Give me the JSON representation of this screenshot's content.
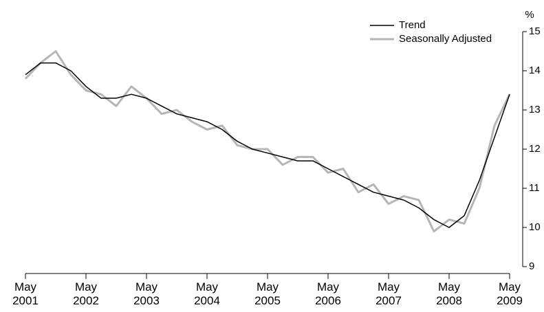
{
  "chart_data": {
    "type": "line",
    "y_unit": "%",
    "categories": [
      "May 2001",
      null,
      null,
      null,
      "May 2002",
      null,
      null,
      null,
      "May 2003",
      null,
      null,
      null,
      "May 2004",
      null,
      null,
      null,
      "May 2005",
      null,
      null,
      null,
      "May 2006",
      null,
      null,
      null,
      "May 2007",
      null,
      null,
      null,
      "May 2008",
      null,
      null,
      null,
      "May 2009"
    ],
    "series": [
      {
        "name": "Trend",
        "color": "#000000",
        "values": [
          13.9,
          14.2,
          14.2,
          14.0,
          13.6,
          13.3,
          13.3,
          13.4,
          13.3,
          13.1,
          12.9,
          12.8,
          12.7,
          12.5,
          12.2,
          12.0,
          11.9,
          11.8,
          11.7,
          11.7,
          11.5,
          11.3,
          11.1,
          10.9,
          10.8,
          10.7,
          10.5,
          10.2,
          10.0,
          10.3,
          11.2,
          12.3,
          13.4
        ]
      },
      {
        "name": "Seasonally Adjusted",
        "color": "#b5b5b5",
        "values": [
          13.8,
          14.2,
          14.5,
          13.9,
          13.5,
          13.4,
          13.1,
          13.6,
          13.3,
          12.9,
          13.0,
          12.7,
          12.5,
          12.6,
          12.1,
          12.0,
          12.0,
          11.6,
          11.8,
          11.8,
          11.4,
          11.5,
          10.9,
          11.1,
          10.6,
          10.8,
          10.7,
          9.9,
          10.2,
          10.1,
          11.0,
          12.6,
          13.4
        ]
      }
    ],
    "ylim": [
      9,
      15
    ],
    "yticks": [
      9,
      10,
      11,
      12,
      13,
      14,
      15
    ],
    "legend": "top-right"
  }
}
